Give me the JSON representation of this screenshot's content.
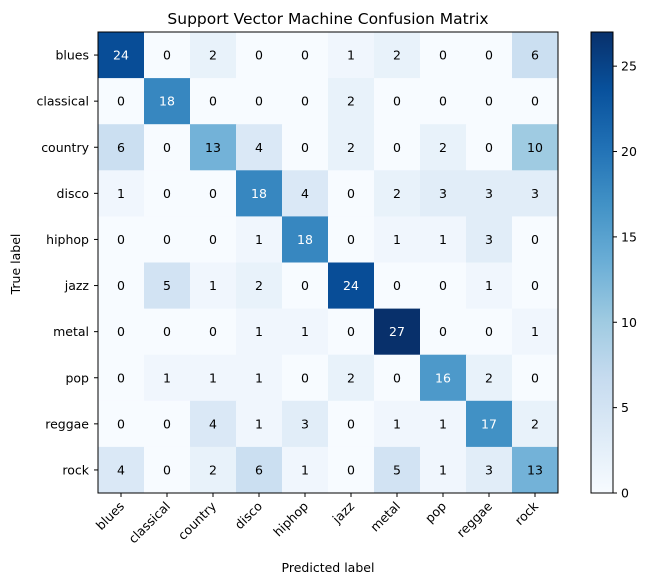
{
  "chart_data": {
    "type": "heatmap",
    "title": "Support Vector Machine Confusion Matrix",
    "xlabel": "Predicted label",
    "ylabel": "True label",
    "x_categories": [
      "blues",
      "classical",
      "country",
      "disco",
      "hiphop",
      "jazz",
      "metal",
      "pop",
      "reggae",
      "rock"
    ],
    "y_categories": [
      "blues",
      "classical",
      "country",
      "disco",
      "hiphop",
      "jazz",
      "metal",
      "pop",
      "reggae",
      "rock"
    ],
    "matrix": [
      [
        24,
        0,
        2,
        0,
        0,
        1,
        2,
        0,
        0,
        6
      ],
      [
        0,
        18,
        0,
        0,
        0,
        2,
        0,
        0,
        0,
        0
      ],
      [
        6,
        0,
        13,
        4,
        0,
        2,
        0,
        2,
        0,
        10
      ],
      [
        1,
        0,
        0,
        18,
        4,
        0,
        2,
        3,
        3,
        3
      ],
      [
        0,
        0,
        0,
        1,
        18,
        0,
        1,
        1,
        3,
        0
      ],
      [
        0,
        5,
        1,
        2,
        0,
        24,
        0,
        0,
        1,
        0
      ],
      [
        0,
        0,
        0,
        1,
        1,
        0,
        27,
        0,
        0,
        1
      ],
      [
        0,
        1,
        1,
        1,
        0,
        2,
        0,
        16,
        2,
        0
      ],
      [
        0,
        0,
        4,
        1,
        3,
        0,
        1,
        1,
        17,
        2
      ],
      [
        4,
        0,
        2,
        6,
        1,
        0,
        5,
        1,
        3,
        13
      ]
    ],
    "colormap": "Blues",
    "value_range": [
      0,
      27
    ],
    "colorbar_ticks": [
      0,
      5,
      10,
      15,
      20,
      25
    ],
    "text_color_light": "#ffffff",
    "text_color_dark": "#000000"
  }
}
